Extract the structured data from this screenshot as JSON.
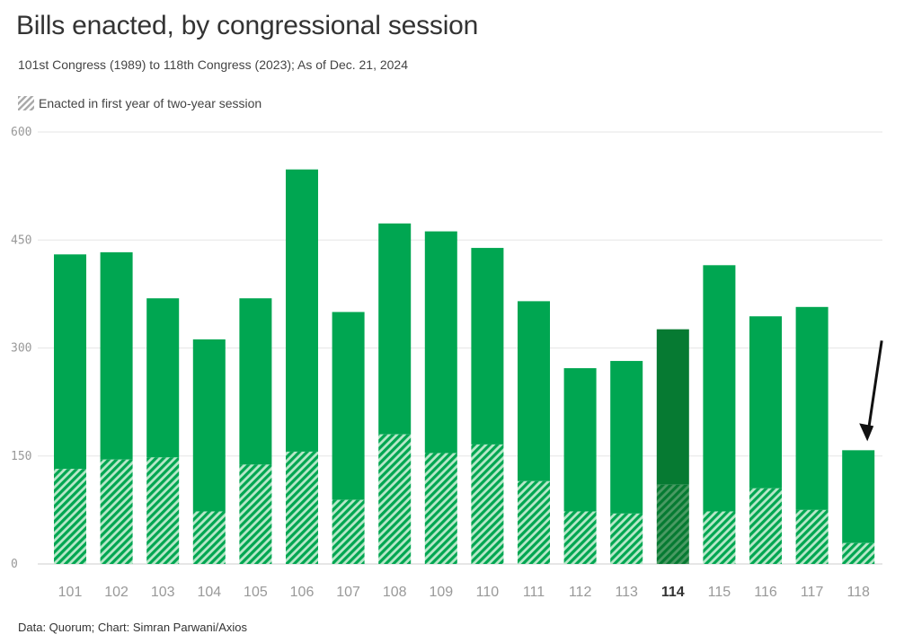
{
  "header": {
    "title": "Bills enacted, by congressional session",
    "subtitle": "101st Congress (1989) to 118th Congress (2023); As of Dec. 21, 2024"
  },
  "legend": {
    "label": "Enacted in first year of two-year session"
  },
  "footer": {
    "source": "Data: Quorum; Chart: Simran Parwani/Axios"
  },
  "colors": {
    "bar": "#00a651",
    "bar_highlight": "#067a32",
    "grid": "#e6e6e6",
    "arrow": "#111111"
  },
  "chart_data": {
    "type": "bar",
    "stacked": true,
    "categories": [
      "101",
      "102",
      "103",
      "104",
      "105",
      "106",
      "107",
      "108",
      "109",
      "110",
      "111",
      "112",
      "113",
      "114",
      "115",
      "116",
      "117",
      "118"
    ],
    "series": [
      {
        "name": "Enacted in first year of two-year session",
        "pattern": "hatched",
        "values": [
          132,
          145,
          148,
          73,
          138,
          156,
          89,
          180,
          154,
          166,
          115,
          73,
          70,
          110,
          73,
          105,
          75,
          29
        ]
      },
      {
        "pattern": "solid",
        "values": [
          298,
          288,
          221,
          239,
          231,
          392,
          261,
          293,
          308,
          273,
          250,
          199,
          212,
          216,
          342,
          239,
          282,
          129
        ]
      }
    ],
    "totals": [
      430,
      433,
      369,
      312,
      369,
      548,
      350,
      473,
      462,
      439,
      365,
      272,
      282,
      326,
      415,
      344,
      357,
      158
    ],
    "highlight_category": "114",
    "yticks": [
      0,
      150,
      300,
      450,
      600
    ],
    "ylim": [
      0,
      600
    ],
    "grid": true,
    "annotation": "arrow pointing to 118"
  }
}
